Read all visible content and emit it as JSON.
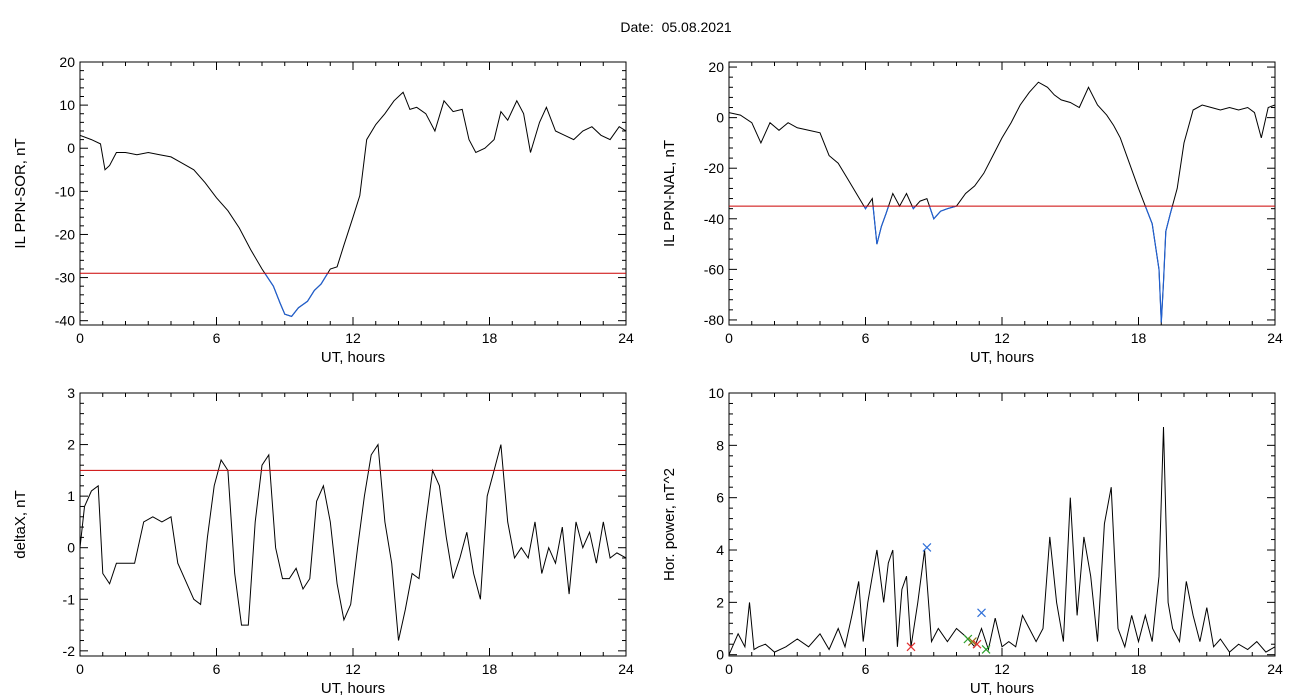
{
  "header": {
    "date_label": "Date:",
    "date_value": "05.08.2021"
  },
  "colors": {
    "line": "#000000",
    "threshold": "#cc0000",
    "highlight": "#1f5fd1",
    "marker_red": "#e03030",
    "marker_blue": "#2f6fd8",
    "marker_green": "#2aa02a",
    "marker_olive": "#8a7a10"
  },
  "chart_data": [
    {
      "type": "line",
      "ylabel": "IL PPN-SOR, nT",
      "xlabel": "UT, hours",
      "xlim": [
        0,
        24
      ],
      "ylim": [
        -41,
        20
      ],
      "xticks": [
        0,
        6,
        12,
        18,
        24
      ],
      "yticks": [
        20,
        10,
        0,
        -10,
        -20,
        -30,
        -40
      ],
      "threshold": -29,
      "highlight_below_threshold": true,
      "series": [
        {
          "x": [
            0,
            0.5,
            0.9,
            1.1,
            1.3,
            1.6,
            2.0,
            2.5,
            3.0,
            3.5,
            4.0,
            4.5,
            5.0,
            5.5,
            6.0,
            6.5,
            7.0,
            7.5,
            8.0,
            8.5,
            8.8,
            9.0,
            9.3,
            9.6,
            10.0,
            10.3,
            10.6,
            11.0,
            11.3,
            11.6,
            12.0,
            12.3,
            12.6,
            13.0,
            13.4,
            13.8,
            14.2,
            14.5,
            14.8,
            15.2,
            15.6,
            16.0,
            16.4,
            16.8,
            17.1,
            17.4,
            17.8,
            18.2,
            18.5,
            18.8,
            19.2,
            19.5,
            19.8,
            20.2,
            20.5,
            20.9,
            21.3,
            21.7,
            22.1,
            22.5,
            22.9,
            23.3,
            23.7,
            24.0
          ],
          "values": [
            3,
            2,
            1,
            -5,
            -4,
            -1,
            -1,
            -1.5,
            -1,
            -1.5,
            -2,
            -3.5,
            -5,
            -8,
            -11.5,
            -14.5,
            -18.5,
            -23.5,
            -28,
            -32,
            -36,
            -38.5,
            -39,
            -37,
            -35.5,
            -33,
            -31.5,
            -28,
            -27.5,
            -22.5,
            -16,
            -11,
            2,
            5.5,
            8,
            11,
            13,
            9,
            9.5,
            8,
            4,
            11,
            8.5,
            9,
            2,
            -1,
            0,
            2,
            8.5,
            6.5,
            11,
            8,
            -1,
            6,
            9.5,
            4,
            3,
            2,
            4,
            5,
            3,
            2,
            5,
            4
          ]
        }
      ]
    },
    {
      "type": "line",
      "ylabel": "IL PPN-NAL, nT",
      "xlabel": "UT, hours",
      "xlim": [
        0,
        24
      ],
      "ylim": [
        -82,
        22
      ],
      "xticks": [
        0,
        6,
        12,
        18,
        24
      ],
      "yticks": [
        20,
        0,
        -20,
        -40,
        -60,
        -80
      ],
      "threshold": -35,
      "highlight_below_threshold": true,
      "series": [
        {
          "x": [
            0,
            0.5,
            1.0,
            1.4,
            1.8,
            2.2,
            2.6,
            3.0,
            3.5,
            4.0,
            4.4,
            4.8,
            5.2,
            5.6,
            6.0,
            6.3,
            6.5,
            6.7,
            6.9,
            7.2,
            7.5,
            7.8,
            8.1,
            8.4,
            8.7,
            9.0,
            9.3,
            9.6,
            10.0,
            10.4,
            10.8,
            11.2,
            11.6,
            12.0,
            12.4,
            12.8,
            13.2,
            13.6,
            14.0,
            14.3,
            14.6,
            15.0,
            15.4,
            15.8,
            16.2,
            16.6,
            16.9,
            17.2,
            17.6,
            18.0,
            18.3,
            18.6,
            18.9,
            19.0,
            19.1,
            19.2,
            19.4,
            19.7,
            20.0,
            20.4,
            20.8,
            21.2,
            21.6,
            22.0,
            22.4,
            22.8,
            23.1,
            23.4,
            23.7,
            24.0
          ],
          "values": [
            2,
            1,
            -2,
            -10,
            -2,
            -5,
            -2,
            -4,
            -5,
            -6,
            -15,
            -18,
            -24,
            -30,
            -36,
            -32,
            -50,
            -43,
            -38,
            -30,
            -35,
            -30,
            -36,
            -33,
            -32,
            -40,
            -37,
            -36,
            -35,
            -30,
            -27,
            -22,
            -15,
            -8,
            -2,
            5,
            10,
            14,
            12,
            9,
            7,
            6,
            4,
            12,
            5,
            1,
            -3,
            -8,
            -18,
            -28,
            -35,
            -42,
            -60,
            -81,
            -65,
            -45,
            -38,
            -28,
            -10,
            3,
            5,
            4,
            3,
            4,
            3,
            4,
            2,
            -8,
            4,
            5
          ]
        }
      ]
    },
    {
      "type": "line",
      "ylabel": "deltaX, nT",
      "xlabel": "UT, hours",
      "xlim": [
        0,
        24
      ],
      "ylim": [
        -2.1,
        3
      ],
      "xticks": [
        0,
        6,
        12,
        18,
        24
      ],
      "yticks": [
        3,
        2,
        1,
        0,
        -1,
        -2
      ],
      "threshold": 1.5,
      "highlight_below_threshold": false,
      "series": [
        {
          "x": [
            0,
            0.2,
            0.5,
            0.8,
            1.0,
            1.3,
            1.6,
            2.0,
            2.4,
            2.8,
            3.2,
            3.6,
            4.0,
            4.3,
            4.6,
            5.0,
            5.3,
            5.6,
            5.9,
            6.2,
            6.5,
            6.8,
            7.1,
            7.4,
            7.7,
            8.0,
            8.3,
            8.6,
            8.9,
            9.2,
            9.5,
            9.8,
            10.1,
            10.4,
            10.7,
            11.0,
            11.3,
            11.6,
            11.9,
            12.2,
            12.5,
            12.8,
            13.1,
            13.4,
            13.7,
            14.0,
            14.3,
            14.6,
            14.9,
            15.2,
            15.5,
            15.8,
            16.1,
            16.4,
            16.7,
            17.0,
            17.3,
            17.6,
            17.9,
            18.2,
            18.5,
            18.8,
            19.1,
            19.4,
            19.7,
            20.0,
            20.3,
            20.6,
            20.9,
            21.2,
            21.5,
            21.8,
            22.1,
            22.4,
            22.7,
            23.0,
            23.3,
            23.6,
            24.0
          ],
          "values": [
            0,
            0.8,
            1.1,
            1.2,
            -0.5,
            -0.7,
            -0.3,
            -0.3,
            -0.3,
            0.5,
            0.6,
            0.5,
            0.6,
            -0.3,
            -0.6,
            -1.0,
            -1.1,
            0.2,
            1.2,
            1.7,
            1.5,
            -0.5,
            -1.5,
            -1.5,
            0.5,
            1.6,
            1.8,
            0.0,
            -0.6,
            -0.6,
            -0.4,
            -0.8,
            -0.6,
            0.9,
            1.2,
            0.5,
            -0.7,
            -1.4,
            -1.1,
            0.0,
            1.0,
            1.8,
            2.0,
            0.5,
            -0.3,
            -1.8,
            -1.2,
            -0.5,
            -0.6,
            0.5,
            1.5,
            1.2,
            0.2,
            -0.6,
            -0.2,
            0.3,
            -0.5,
            -1.0,
            1.0,
            1.5,
            2.0,
            0.5,
            -0.2,
            0.0,
            -0.2,
            0.5,
            -0.5,
            0.0,
            -0.3,
            0.4,
            -0.9,
            0.5,
            0.0,
            0.3,
            -0.3,
            0.5,
            -0.2,
            -0.1,
            -0.2
          ]
        }
      ]
    },
    {
      "type": "line",
      "ylabel": "Hor. power, nT^2",
      "xlabel": "UT, hours",
      "xlim": [
        0,
        24
      ],
      "ylim": [
        -0.05,
        10
      ],
      "xticks": [
        0,
        6,
        12,
        18,
        24
      ],
      "yticks": [
        10,
        8,
        6,
        4,
        2,
        0
      ],
      "series": [
        {
          "x": [
            0,
            0.4,
            0.7,
            0.9,
            1.1,
            1.3,
            1.6,
            2.0,
            2.5,
            3.0,
            3.5,
            4.0,
            4.4,
            4.8,
            5.1,
            5.4,
            5.7,
            5.9,
            6.1,
            6.3,
            6.5,
            6.8,
            7.0,
            7.2,
            7.4,
            7.6,
            7.8,
            8.0,
            8.3,
            8.6,
            8.9,
            9.2,
            9.6,
            10.0,
            10.4,
            10.8,
            11.1,
            11.4,
            11.7,
            12.0,
            12.3,
            12.6,
            12.9,
            13.2,
            13.5,
            13.8,
            14.1,
            14.4,
            14.7,
            15.0,
            15.3,
            15.6,
            15.9,
            16.2,
            16.5,
            16.8,
            17.1,
            17.4,
            17.7,
            18.0,
            18.3,
            18.6,
            18.9,
            19.1,
            19.3,
            19.5,
            19.8,
            20.1,
            20.4,
            20.7,
            21.0,
            21.3,
            21.6,
            22.0,
            22.4,
            22.8,
            23.2,
            23.6,
            24.0
          ],
          "values": [
            0.0,
            0.8,
            0.3,
            2.0,
            0.2,
            0.3,
            0.4,
            0.1,
            0.3,
            0.6,
            0.3,
            0.8,
            0.2,
            1.0,
            0.3,
            1.5,
            2.8,
            0.5,
            2.0,
            3.0,
            4.0,
            2.0,
            3.5,
            4.0,
            0.3,
            2.5,
            3.0,
            0.3,
            2.0,
            4.0,
            0.5,
            1.0,
            0.5,
            1.0,
            0.7,
            0.3,
            1.0,
            0.2,
            1.4,
            0.3,
            0.5,
            0.3,
            1.5,
            1.0,
            0.5,
            1.0,
            4.5,
            2.0,
            0.5,
            6.0,
            1.5,
            4.5,
            3.0,
            0.5,
            5.0,
            6.4,
            1.0,
            0.3,
            1.5,
            0.5,
            1.5,
            0.5,
            3.0,
            8.7,
            2.0,
            1.0,
            0.5,
            2.8,
            1.5,
            0.5,
            1.8,
            0.3,
            0.6,
            0.1,
            0.4,
            0.2,
            0.5,
            0.1,
            0.3
          ]
        }
      ],
      "markers": [
        {
          "x": 8.0,
          "y": 0.3,
          "color": "#e03030"
        },
        {
          "x": 8.7,
          "y": 4.1,
          "color": "#2f6fd8"
        },
        {
          "x": 10.5,
          "y": 0.6,
          "color": "#2aa02a"
        },
        {
          "x": 10.7,
          "y": 0.5,
          "color": "#8a7a10"
        },
        {
          "x": 10.9,
          "y": 0.4,
          "color": "#e03030"
        },
        {
          "x": 11.1,
          "y": 1.6,
          "color": "#2f6fd8"
        },
        {
          "x": 11.3,
          "y": 0.2,
          "color": "#2aa02a"
        }
      ]
    }
  ]
}
